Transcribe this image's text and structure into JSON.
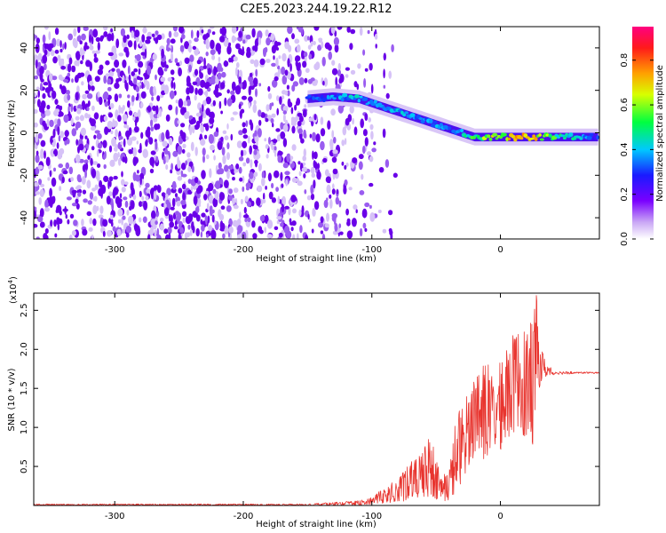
{
  "title": "C2E5.2023.244.19.22.R12",
  "colors": {
    "snr_line": "#e8352f",
    "track_core": "#00c8ff",
    "track_peak": "#ff4000",
    "speckle": "#6a00e8"
  },
  "chart_data": [
    {
      "type": "heatmap",
      "xlabel": "Height of straight line (km)",
      "ylabel": "Frequency (Hz)",
      "xlim": [
        -363,
        77
      ],
      "ylim": [
        -50,
        50
      ],
      "xticks": [
        -300,
        -200,
        -100,
        0
      ],
      "yticks": [
        40,
        20,
        0,
        -20,
        -40
      ],
      "grid": false,
      "colorbar": {
        "label": "Normalized spectral amplitude",
        "range": [
          0,
          0.95
        ],
        "ticks": [
          "0.0",
          "0.2",
          "0.4",
          "0.6",
          "0.8"
        ],
        "ticks_values": [
          0,
          0.2,
          0.4,
          0.6,
          0.8
        ],
        "colormap": "rainbow (white-purple-blue-cyan-green-yellow-orange-red-magenta)"
      },
      "description_values": {
        "noise_region_height_range": [
          -363,
          -100
        ],
        "signal_track": {
          "height": [
            -150,
            -130,
            -110,
            -90,
            -70,
            -50,
            -35,
            -20,
            0,
            20,
            40,
            77
          ],
          "frequency": [
            16,
            17,
            16,
            12,
            8,
            4,
            1,
            -2,
            -2,
            -2,
            -2,
            -2
          ],
          "amplitude": [
            0.3,
            0.4,
            0.45,
            0.45,
            0.4,
            0.4,
            0.35,
            0.6,
            0.75,
            0.8,
            0.6,
            0.3
          ]
        }
      }
    },
    {
      "type": "line",
      "xlabel": "Height of straight line (km)",
      "ylabel": "SNR (10 * v/v)",
      "scale_label": "(x10",
      "scale_exp": "4",
      "scale_close": ")",
      "xlim": [
        -363,
        77
      ],
      "ylim": [
        0,
        2.72
      ],
      "xticks": [
        -300,
        -200,
        -100,
        0
      ],
      "yticks": [
        "0.5",
        "1.0",
        "1.5",
        "2.0",
        "2.5"
      ],
      "yticks_values": [
        0.5,
        1.0,
        1.5,
        2.0,
        2.5
      ],
      "grid": false,
      "series": [
        {
          "x": [
            -363,
            -150,
            -110,
            -100,
            -90,
            -80,
            -70,
            -60,
            -55,
            -50,
            -45,
            -40,
            -35,
            -30,
            -25,
            -20,
            -15,
            -10,
            -5,
            0,
            5,
            10,
            15,
            20,
            25,
            28,
            30,
            35,
            40,
            45,
            50,
            60,
            77
          ],
          "y": [
            0.02,
            0.02,
            0.04,
            0.06,
            0.12,
            0.2,
            0.3,
            0.45,
            0.55,
            0.5,
            0.25,
            0.2,
            0.35,
            0.75,
            1.05,
            1.1,
            1.15,
            1.2,
            1.15,
            1.25,
            1.4,
            1.55,
            1.6,
            1.55,
            1.6,
            1.75,
            1.7,
            1.72,
            1.7,
            1.7,
            1.7,
            1.7,
            1.7
          ],
          "envelope_max": [
            0.02,
            0.02,
            0.06,
            0.12,
            0.22,
            0.35,
            0.55,
            0.75,
            0.95,
            0.6,
            0.4,
            0.45,
            1.1,
            1.35,
            1.45,
            1.65,
            1.72,
            1.95,
            1.65,
            1.85,
            2.0,
            2.2,
            2.3,
            2.2,
            2.4,
            2.72,
            2.15,
            1.85,
            1.75,
            1.72,
            1.72,
            1.71,
            1.71
          ],
          "envelope_min": [
            0.0,
            0.0,
            0.0,
            0.01,
            0.02,
            0.04,
            0.06,
            0.08,
            0.1,
            0.08,
            0.05,
            0.04,
            0.15,
            0.3,
            0.5,
            0.6,
            0.55,
            0.5,
            0.65,
            0.7,
            0.75,
            0.9,
            1.0,
            0.8,
            0.7,
            1.2,
            1.5,
            1.65,
            1.67,
            1.68,
            1.68,
            1.69,
            1.69
          ]
        }
      ]
    }
  ]
}
